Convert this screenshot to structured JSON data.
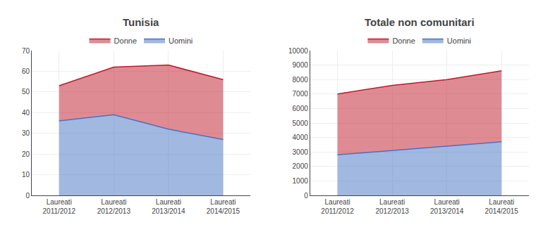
{
  "chart_data": [
    {
      "type": "area",
      "title": "Tunisia",
      "categories": [
        "Laureati\n2011/2012",
        "Laureati\n2012/2013",
        "Laureati\n2013/2014",
        "Laureati\n2014/2015"
      ],
      "series": [
        {
          "name": "Donne",
          "color": "#c0182a",
          "values": [
            53,
            62,
            63,
            56
          ]
        },
        {
          "name": "Uomini",
          "color": "#4472c4",
          "values": [
            36,
            39,
            32,
            27
          ]
        }
      ],
      "stacked": false,
      "ylim": [
        0,
        70
      ],
      "yticks": [
        0,
        10,
        20,
        30,
        40,
        50,
        60,
        70
      ],
      "grid": true,
      "legend": "top"
    },
    {
      "type": "area",
      "title": "Totale non comunitari",
      "categories": [
        "Laureati\n2011/2012",
        "Laureati\n2012/2013",
        "Laureati\n2013/2014",
        "Laureati\n2014/2015"
      ],
      "series": [
        {
          "name": "Donne",
          "color": "#c0182a",
          "values": [
            7000,
            7600,
            8000,
            8600
          ]
        },
        {
          "name": "Uomini",
          "color": "#4472c4",
          "values": [
            2800,
            3100,
            3400,
            3700
          ]
        }
      ],
      "stacked": false,
      "ylim": [
        0,
        10000
      ],
      "yticks": [
        0,
        1000,
        2000,
        3000,
        4000,
        5000,
        6000,
        7000,
        8000,
        9000,
        10000
      ],
      "grid": true,
      "legend": "top"
    }
  ]
}
